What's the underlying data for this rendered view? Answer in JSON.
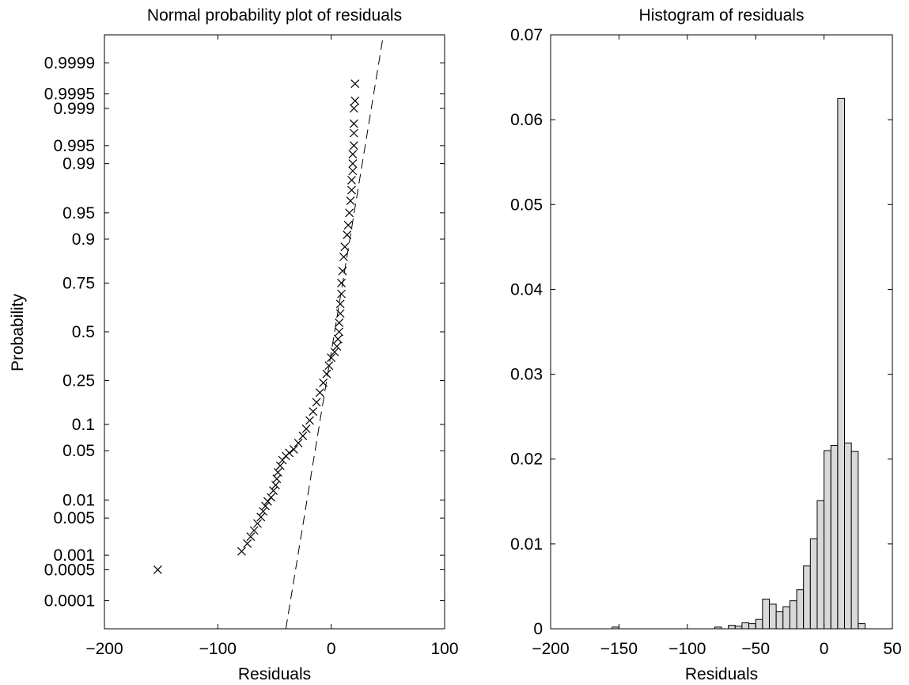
{
  "chart_data": [
    {
      "type": "scatter",
      "title": "Normal probability plot of residuals",
      "xlabel": "Residuals",
      "ylabel": "Probability",
      "xlim": [
        -200,
        100
      ],
      "x_ticks": [
        -200,
        -100,
        0,
        100
      ],
      "x_tick_labels": [
        "−200",
        "−100",
        "0",
        "100"
      ],
      "y_scale": "normal-probability",
      "y_ticks": [
        0.0001,
        0.0005,
        0.001,
        0.005,
        0.01,
        0.05,
        0.1,
        0.25,
        0.5,
        0.75,
        0.9,
        0.95,
        0.99,
        0.995,
        0.999,
        0.9995,
        0.9999
      ],
      "y_tick_labels": [
        "0.0001",
        "0.0005",
        "0.001",
        "0.005",
        "0.01",
        "0.05",
        "0.1",
        "0.25",
        "0.5",
        "0.75",
        "0.9",
        "0.95",
        "0.99",
        "0.995",
        "0.999",
        "0.9995",
        "0.9999"
      ],
      "grid": false,
      "marker": "x",
      "reference_line": {
        "style": "dashed",
        "points": [
          [
            -40,
            2e-05
          ],
          [
            46,
            0.99998
          ]
        ]
      },
      "points": [
        [
          -153,
          0.0005
        ],
        [
          -79,
          0.0012
        ],
        [
          -74,
          0.0017
        ],
        [
          -71,
          0.0023
        ],
        [
          -68,
          0.003
        ],
        [
          -65,
          0.004
        ],
        [
          -62,
          0.0052
        ],
        [
          -60,
          0.0065
        ],
        [
          -58,
          0.008
        ],
        [
          -56,
          0.0095
        ],
        [
          -53,
          0.011
        ],
        [
          -51,
          0.014
        ],
        [
          -49,
          0.017
        ],
        [
          -48,
          0.021
        ],
        [
          -47,
          0.026
        ],
        [
          -45,
          0.032
        ],
        [
          -43,
          0.038
        ],
        [
          -40,
          0.043
        ],
        [
          -37,
          0.047
        ],
        [
          -33,
          0.052
        ],
        [
          -29,
          0.062
        ],
        [
          -25,
          0.075
        ],
        [
          -22,
          0.09
        ],
        [
          -19,
          0.11
        ],
        [
          -16,
          0.135
        ],
        [
          -13,
          0.165
        ],
        [
          -10,
          0.2
        ],
        [
          -7,
          0.24
        ],
        [
          -4,
          0.28
        ],
        [
          -2,
          0.32
        ],
        [
          0,
          0.36
        ],
        [
          3,
          0.39
        ],
        [
          5,
          0.42
        ],
        [
          6,
          0.46
        ],
        [
          7,
          0.5
        ],
        [
          7,
          0.55
        ],
        [
          8,
          0.6
        ],
        [
          8,
          0.65
        ],
        [
          9,
          0.7
        ],
        [
          9,
          0.75
        ],
        [
          10,
          0.8
        ],
        [
          11,
          0.85
        ],
        [
          12,
          0.88
        ],
        [
          14,
          0.91
        ],
        [
          15,
          0.93
        ],
        [
          16,
          0.95
        ],
        [
          17,
          0.965
        ],
        [
          18,
          0.975
        ],
        [
          18,
          0.982
        ],
        [
          19,
          0.987
        ],
        [
          19,
          0.99
        ],
        [
          19,
          0.993
        ],
        [
          20,
          0.995
        ],
        [
          20,
          0.997
        ],
        [
          20,
          0.998
        ],
        [
          20,
          0.999
        ],
        [
          21,
          0.9993
        ],
        [
          21,
          0.9997
        ]
      ]
    },
    {
      "type": "bar",
      "title": "Histogram of residuals",
      "xlabel": "Residuals",
      "ylabel": "",
      "xlim": [
        -200,
        50
      ],
      "ylim": [
        0,
        0.07
      ],
      "x_ticks": [
        -200,
        -150,
        -100,
        -50,
        0,
        50
      ],
      "x_tick_labels": [
        "−200",
        "−150",
        "−100",
        "−50",
        "0",
        "50"
      ],
      "y_ticks": [
        0,
        0.01,
        0.02,
        0.03,
        0.04,
        0.05,
        0.06,
        0.07
      ],
      "y_tick_labels": [
        "0",
        "0.01",
        "0.02",
        "0.03",
        "0.04",
        "0.05",
        "0.06",
        "0.07"
      ],
      "grid": false,
      "bar_color": "#d9d9d9",
      "bin_width": 5,
      "bins": [
        [
          -155,
          0.0002
        ],
        [
          -80,
          0.0002
        ],
        [
          -70,
          0.0004
        ],
        [
          -65,
          0.0003
        ],
        [
          -60,
          0.0007
        ],
        [
          -55,
          0.0006
        ],
        [
          -50,
          0.0011
        ],
        [
          -45,
          0.0035
        ],
        [
          -40,
          0.0029
        ],
        [
          -35,
          0.002
        ],
        [
          -30,
          0.0026
        ],
        [
          -25,
          0.0033
        ],
        [
          -20,
          0.0046
        ],
        [
          -15,
          0.0074
        ],
        [
          -10,
          0.0106
        ],
        [
          -5,
          0.0151
        ],
        [
          0,
          0.021
        ],
        [
          5,
          0.0216
        ],
        [
          10,
          0.0625
        ],
        [
          15,
          0.0219
        ],
        [
          20,
          0.0209
        ],
        [
          25,
          0.0006
        ]
      ]
    }
  ]
}
